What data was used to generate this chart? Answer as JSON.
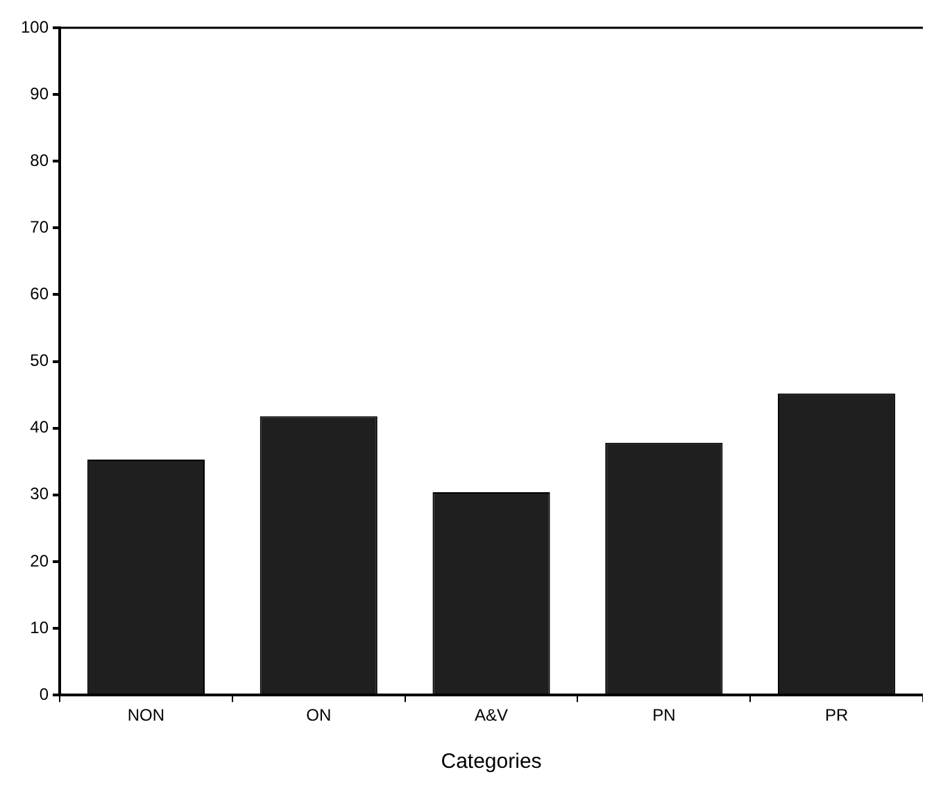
{
  "chart_data": {
    "type": "bar",
    "xlabel": "Categories",
    "categories": [
      "NON",
      "ON",
      "A&V",
      "PN",
      "PR"
    ],
    "values": [
      35.3,
      41.8,
      30.4,
      37.8,
      45.2
    ],
    "color": "#1f1f1f",
    "ylim": [
      0,
      100
    ],
    "yticks": [
      0,
      10,
      20,
      30,
      40,
      50,
      60,
      70,
      80,
      90,
      100
    ],
    "grid": false,
    "legend": false
  }
}
